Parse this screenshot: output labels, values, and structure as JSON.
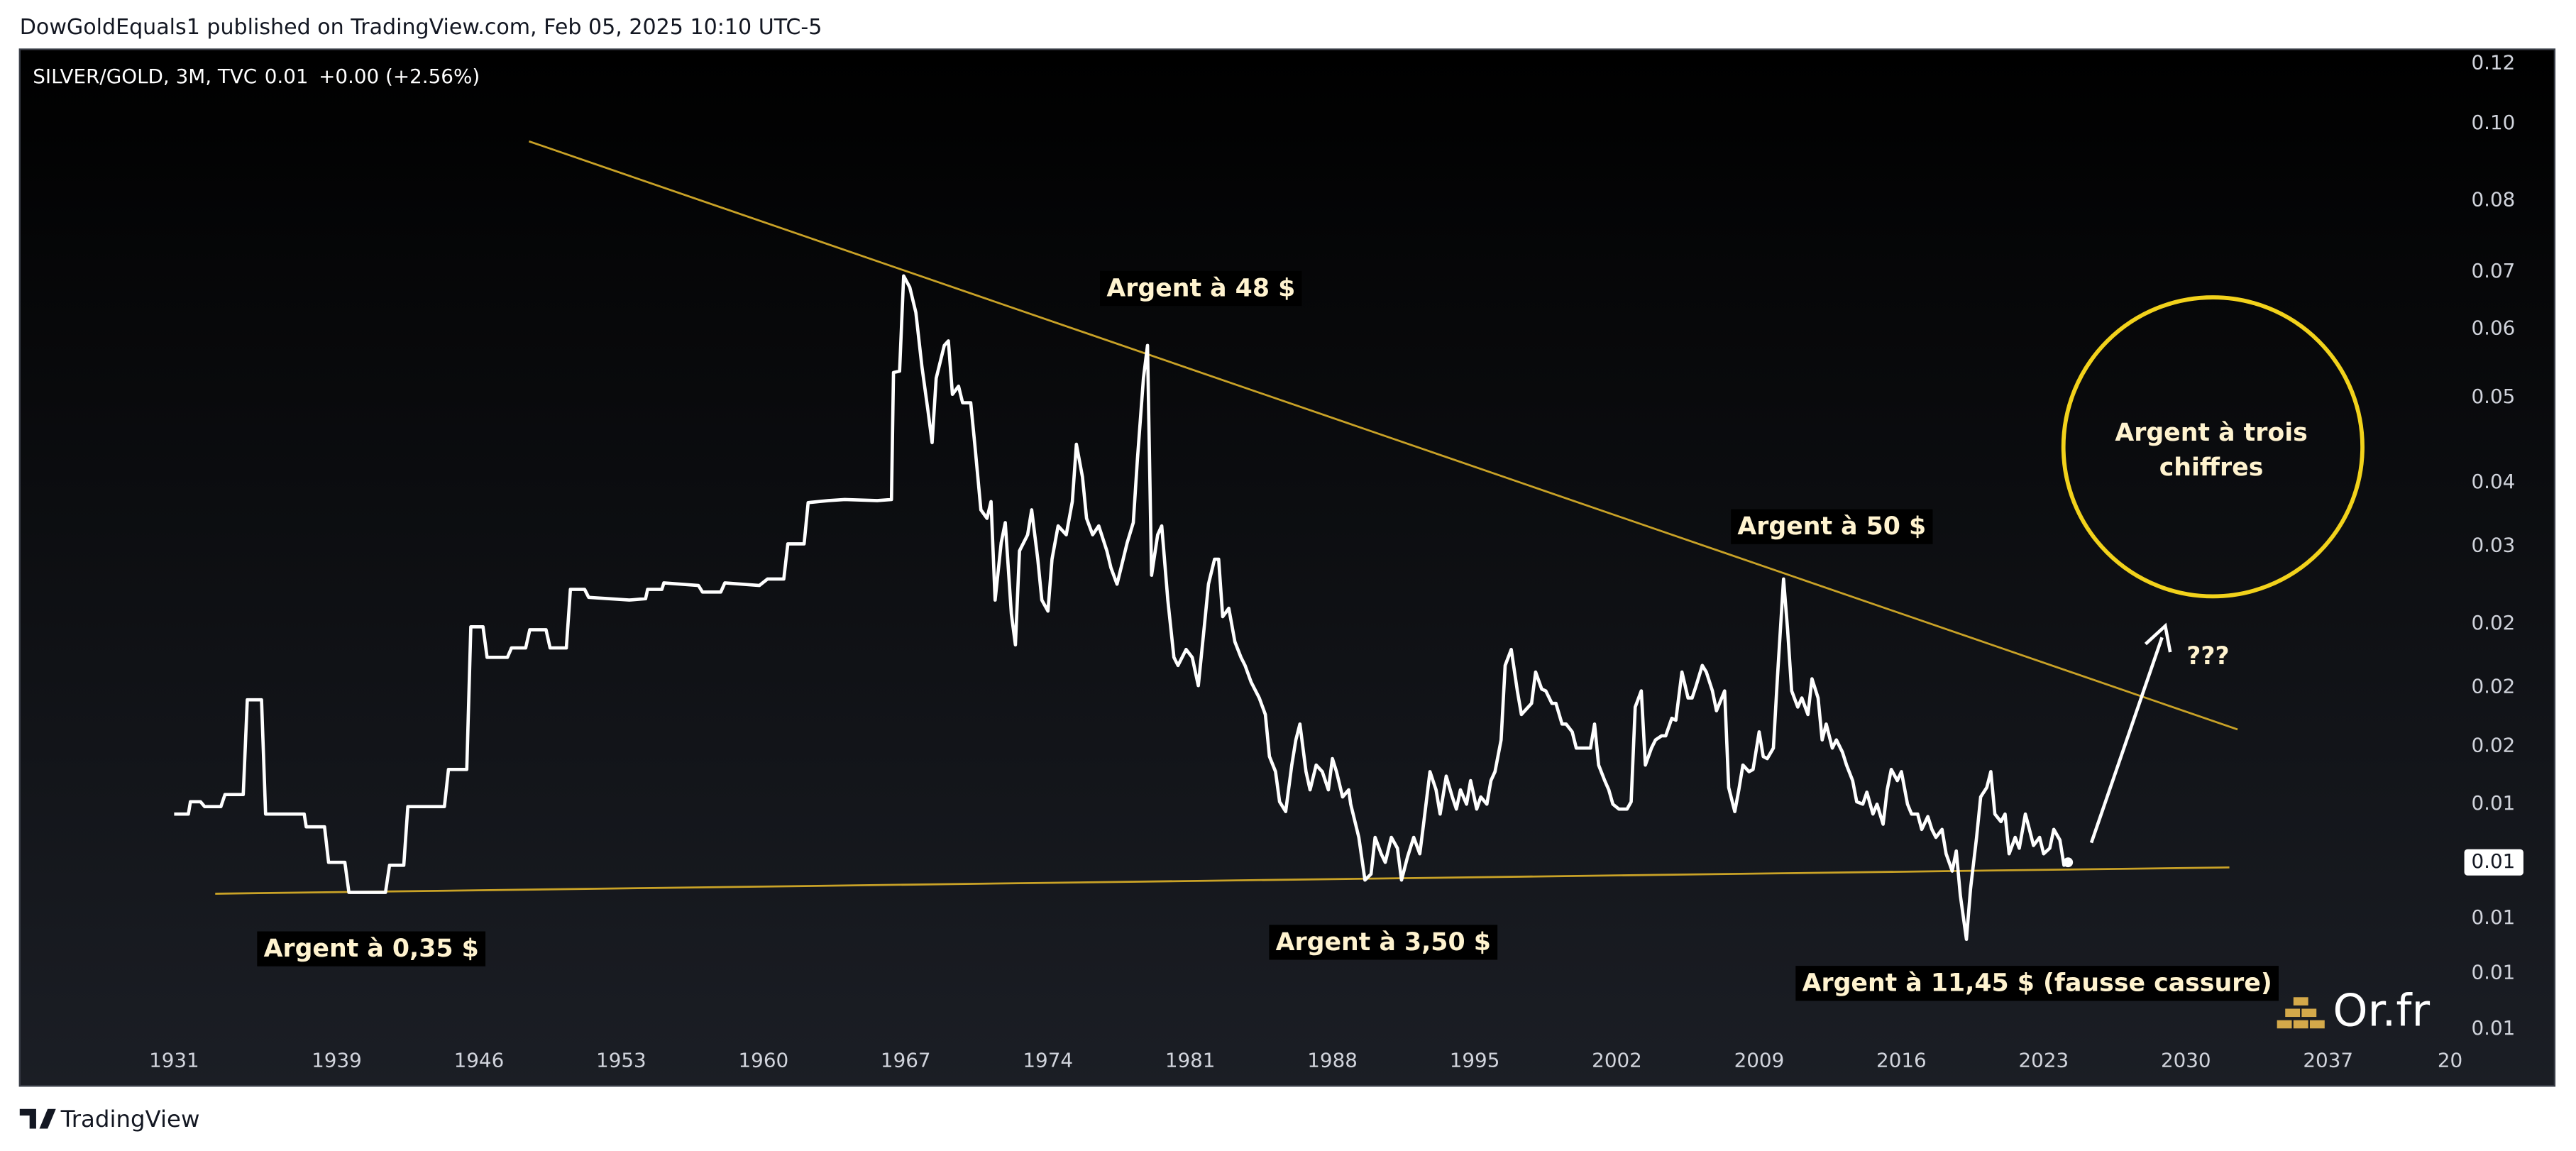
{
  "header": {
    "publisher": "DowGoldEquals1 published on TradingView.com, Feb 05, 2025 10:10 UTC-5"
  },
  "footer": {
    "brand": "TradingView"
  },
  "watermark": "Or.fr",
  "chart_data": {
    "type": "line",
    "legend": {
      "symbol": "SILVER/GOLD, 3M, TVC",
      "price": "0.01",
      "change": "+0.00 (+2.56%)"
    },
    "color": "#ffffff",
    "log_scale": true,
    "grid": false,
    "xlim": [
      1923.4,
      2043.7
    ],
    "ylim": [
      0.0073,
      0.125
    ],
    "xticks": [
      1931,
      1939,
      1946,
      1953,
      1960,
      1967,
      1974,
      1981,
      1988,
      1995,
      2002,
      2009,
      2016,
      2023,
      2030,
      2037,
      {
        "value": 2043,
        "label": "20"
      }
    ],
    "yticks": [
      0.12,
      {
        "value": 0.101,
        "label": "0.10"
      },
      {
        "value": 0.081,
        "label": "0.08"
      },
      {
        "value": 0.066,
        "label": "0.07"
      },
      {
        "value": 0.056,
        "label": "0.06"
      },
      {
        "value": 0.046,
        "label": "0.05"
      },
      {
        "value": 0.036,
        "label": "0.04"
      },
      0.03,
      {
        "value": 0.024,
        "label": "0.02"
      },
      0.02,
      {
        "value": 0.0169,
        "label": "0.02"
      },
      {
        "value": 0.0143,
        "label": "0.01"
      },
      {
        "value": 0.0103,
        "label": "0.01"
      },
      {
        "value": 0.0088,
        "label": "0.01"
      },
      {
        "value": 0.0075,
        "label": "0.01"
      }
    ],
    "last_value_label": "0.01",
    "annotations": [
      "Argent à 48 $",
      "Argent à 50 $",
      "Argent à 0,35 $",
      "Argent à 3,50 $",
      "Argent à 11,45 $ (fausse cassure)",
      "???"
    ],
    "circle_text": [
      "Argent à trois",
      "chiffres"
    ],
    "x": [
      1931.0,
      1931.7,
      1931.8,
      1932.3,
      1932.5,
      1933.3,
      1933.5,
      1934.4,
      1934.6,
      1935.3,
      1935.5,
      1937.4,
      1937.5,
      1938.4,
      1938.6,
      1939.4,
      1939.6,
      1941.4,
      1941.6,
      1942.3,
      1942.5,
      1944.3,
      1944.5,
      1945.4,
      1945.6,
      1946.2,
      1946.4,
      1947.4,
      1947.6,
      1948.3,
      1948.5,
      1949.3,
      1949.5,
      1950.3,
      1950.5,
      1951.2,
      1951.4,
      1953.4,
      1954.2,
      1954.3,
      1955.0,
      1955.1,
      1956.8,
      1957.0,
      1957.9,
      1958.1,
      1959.8,
      1960.2,
      1961.0,
      1961.2,
      1962.0,
      1962.2,
      1963.2,
      1964.0,
      1965.6,
      1966.3,
      1966.4,
      1966.7,
      1966.9,
      1967.2,
      1967.5,
      1967.8,
      1968.1,
      1968.3,
      1968.5,
      1968.9,
      1969.1,
      1969.3,
      1969.6,
      1969.8,
      1970.2,
      1970.4,
      1970.7,
      1971.0,
      1971.2,
      1971.4,
      1971.7,
      1971.9,
      1972.2,
      1972.4,
      1972.6,
      1973.0,
      1973.2,
      1973.5,
      1973.7,
      1974.0,
      1974.2,
      1974.5,
      1974.9,
      1975.2,
      1975.4,
      1975.7,
      1975.9,
      1976.2,
      1976.5,
      1976.9,
      1977.1,
      1977.4,
      1977.6,
      1977.9,
      1978.2,
      1978.4,
      1978.7,
      1978.9,
      1979.1,
      1979.4,
      1979.6,
      1979.9,
      1980.2,
      1980.4,
      1980.8,
      1981.1,
      1981.4,
      1981.7,
      1981.9,
      1982.2,
      1982.4,
      1982.6,
      1982.9,
      1983.2,
      1983.5,
      1983.7,
      1984.0,
      1984.4,
      1984.7,
      1984.9,
      1985.2,
      1985.4,
      1985.7,
      1986.0,
      1986.2,
      1986.4,
      1986.7,
      1986.9,
      1987.2,
      1987.5,
      1987.8,
      1988.0,
      1988.2,
      1988.5,
      1988.8,
      1988.9,
      1989.3,
      1989.6,
      1989.9,
      1990.1,
      1990.4,
      1990.6,
      1990.9,
      1991.2,
      1991.4,
      1991.7,
      1992.0,
      1992.3,
      1992.5,
      1992.8,
      1993.1,
      1993.3,
      1993.6,
      1993.9,
      1994.1,
      1994.3,
      1994.6,
      1994.8,
      1995.1,
      1995.3,
      1995.6,
      1995.8,
      1996.0,
      1996.3,
      1996.5,
      1996.8,
      1997.1,
      1997.3,
      1997.8,
      1998.0,
      1998.3,
      1998.5,
      1998.8,
      1999.0,
      1999.3,
      1999.5,
      1999.8,
      2000.0,
      2000.3,
      2000.7,
      2000.9,
      2001.1,
      2001.4,
      2001.6,
      2001.8,
      2002.1,
      2002.5,
      2002.7,
      2002.9,
      2003.2,
      2003.4,
      2003.7,
      2003.9,
      2004.2,
      2004.4,
      2004.7,
      2004.9,
      2005.2,
      2005.5,
      2005.7,
      2005.9,
      2006.2,
      2006.4,
      2006.7,
      2006.9,
      2007.3,
      2007.5,
      2007.8,
      2008.0,
      2008.2,
      2008.5,
      2008.7,
      2009.0,
      2009.2,
      2009.4,
      2009.7,
      2009.9,
      2010.2,
      2010.4,
      2010.6,
      2010.9,
      2011.1,
      2011.4,
      2011.6,
      2011.9,
      2012.1,
      2012.3,
      2012.6,
      2012.8,
      2013.1,
      2013.3,
      2013.6,
      2013.8,
      2014.1,
      2014.3,
      2014.6,
      2014.8,
      2015.1,
      2015.3,
      2015.5,
      2015.8,
      2016.0,
      2016.3,
      2016.5,
      2016.8,
      2017.0,
      2017.3,
      2017.5,
      2017.7,
      2018.0,
      2018.2,
      2018.5,
      2018.7,
      2018.9,
      2019.2,
      2019.4,
      2019.7,
      2019.9,
      2020.2,
      2020.4,
      2020.6,
      2020.9,
      2021.1,
      2021.3,
      2021.6,
      2021.8,
      2022.1,
      2022.3,
      2022.5,
      2022.8,
      2023.0,
      2023.3,
      2023.5,
      2023.8,
      2024.0,
      2024.2
    ],
    "values": [
      0.0139,
      0.0139,
      0.0144,
      0.0144,
      0.0142,
      0.0142,
      0.0147,
      0.0147,
      0.0193,
      0.0193,
      0.0139,
      0.0139,
      0.0134,
      0.0134,
      0.0121,
      0.0121,
      0.0111,
      0.0111,
      0.012,
      0.012,
      0.0142,
      0.0142,
      0.0158,
      0.0158,
      0.0238,
      0.0238,
      0.0218,
      0.0218,
      0.0224,
      0.0224,
      0.0236,
      0.0236,
      0.0224,
      0.0224,
      0.0265,
      0.0265,
      0.0259,
      0.0257,
      0.0258,
      0.0265,
      0.0265,
      0.027,
      0.0268,
      0.0263,
      0.0263,
      0.027,
      0.0268,
      0.0273,
      0.0273,
      0.0302,
      0.0302,
      0.034,
      0.0342,
      0.0343,
      0.0342,
      0.0343,
      0.0494,
      0.0496,
      0.0652,
      0.0631,
      0.0587,
      0.0502,
      0.0442,
      0.0404,
      0.0486,
      0.0534,
      0.0541,
      0.0464,
      0.0475,
      0.0453,
      0.0453,
      0.0402,
      0.0333,
      0.0325,
      0.0341,
      0.0257,
      0.0303,
      0.0321,
      0.0247,
      0.0226,
      0.0296,
      0.031,
      0.0333,
      0.0289,
      0.0257,
      0.0249,
      0.0289,
      0.0318,
      0.031,
      0.0341,
      0.0402,
      0.0366,
      0.0325,
      0.031,
      0.0318,
      0.0296,
      0.0282,
      0.0269,
      0.0282,
      0.0303,
      0.0321,
      0.0384,
      0.0486,
      0.0534,
      0.0276,
      0.031,
      0.0318,
      0.0257,
      0.0218,
      0.0213,
      0.0223,
      0.0218,
      0.0201,
      0.0239,
      0.0269,
      0.0289,
      0.0289,
      0.0245,
      0.0251,
      0.0228,
      0.0218,
      0.0213,
      0.0203,
      0.0194,
      0.0185,
      0.0164,
      0.0157,
      0.0144,
      0.014,
      0.016,
      0.0172,
      0.018,
      0.0157,
      0.0149,
      0.016,
      0.0157,
      0.0149,
      0.0163,
      0.0157,
      0.0146,
      0.0149,
      0.0143,
      0.013,
      0.0115,
      0.0117,
      0.013,
      0.0124,
      0.0121,
      0.013,
      0.0126,
      0.0115,
      0.0123,
      0.013,
      0.0124,
      0.0136,
      0.0157,
      0.0149,
      0.0139,
      0.0155,
      0.0146,
      0.0141,
      0.0149,
      0.0143,
      0.0153,
      0.0141,
      0.0146,
      0.0143,
      0.0153,
      0.0157,
      0.0172,
      0.0213,
      0.0223,
      0.0198,
      0.0185,
      0.0191,
      0.0209,
      0.0199,
      0.0198,
      0.0191,
      0.0191,
      0.018,
      0.018,
      0.0176,
      0.0168,
      0.0168,
      0.0168,
      0.018,
      0.016,
      0.0153,
      0.0149,
      0.0143,
      0.0141,
      0.0141,
      0.0144,
      0.0189,
      0.0198,
      0.016,
      0.0168,
      0.0172,
      0.0174,
      0.0174,
      0.0183,
      0.0182,
      0.0209,
      0.0194,
      0.0194,
      0.0201,
      0.0213,
      0.0209,
      0.0198,
      0.0187,
      0.0198,
      0.015,
      0.014,
      0.0149,
      0.016,
      0.0157,
      0.0158,
      0.0176,
      0.0164,
      0.0163,
      0.0168,
      0.0206,
      0.0273,
      0.0236,
      0.0198,
      0.0189,
      0.0194,
      0.0185,
      0.0205,
      0.0194,
      0.0172,
      0.018,
      0.0168,
      0.0172,
      0.0166,
      0.016,
      0.0153,
      0.0144,
      0.0143,
      0.0148,
      0.0139,
      0.0143,
      0.0135,
      0.0149,
      0.0158,
      0.0153,
      0.0157,
      0.0143,
      0.0139,
      0.0139,
      0.0133,
      0.0138,
      0.0133,
      0.013,
      0.0133,
      0.0124,
      0.0118,
      0.0125,
      0.011,
      0.0097,
      0.0112,
      0.013,
      0.0146,
      0.015,
      0.0157,
      0.0139,
      0.0136,
      0.0139,
      0.0124,
      0.013,
      0.0126,
      0.0139,
      0.0133,
      0.0127,
      0.013,
      0.0124,
      0.0126,
      0.0133,
      0.0129,
      0.012,
      0.0121
    ]
  }
}
